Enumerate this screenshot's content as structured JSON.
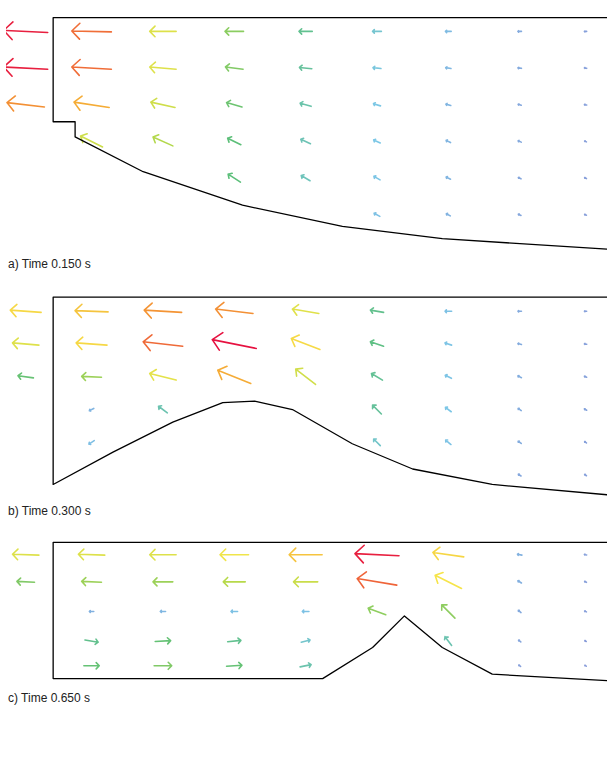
{
  "chart_data": [
    {
      "type": "vector",
      "title": "a) Time 0.150 s",
      "xlim": [
        -0.85,
        10.1
      ],
      "ylim": [
        -5.1,
        0.2
      ],
      "tick_labels": false,
      "speed_range": [
        0,
        1
      ],
      "boundary": [
        [
          10.09,
          0
        ],
        [
          0,
          0
        ],
        [
          0,
          -2.27
        ],
        [
          0.4,
          -2.27
        ],
        [
          0.4,
          -2.6
        ],
        [
          1.64,
          -3.36
        ],
        [
          3.45,
          -4.09
        ],
        [
          5.27,
          -4.55
        ],
        [
          7.09,
          -4.82
        ],
        [
          10.09,
          -5.05
        ]
      ],
      "vectors": [
        [
          -0.5,
          -0.3,
          -1.0,
          0.05
        ],
        [
          -0.5,
          -1.1,
          -1.0,
          0.05
        ],
        [
          -0.5,
          -1.9,
          -0.85,
          0.1
        ],
        [
          0.7,
          -0.3,
          -0.9,
          0.02
        ],
        [
          0.7,
          -1.1,
          -0.9,
          0.05
        ],
        [
          0.7,
          -1.9,
          -0.8,
          0.12
        ],
        [
          0.7,
          -2.7,
          -0.5,
          0.25
        ],
        [
          2,
          -0.3,
          -0.6,
          0
        ],
        [
          2,
          -1.1,
          -0.6,
          0.05
        ],
        [
          2,
          -1.9,
          -0.55,
          0.12
        ],
        [
          2,
          -2.7,
          -0.45,
          0.2
        ],
        [
          3.3,
          -0.3,
          -0.42,
          0
        ],
        [
          3.3,
          -1.1,
          -0.4,
          0.05
        ],
        [
          3.3,
          -1.9,
          -0.35,
          0.1
        ],
        [
          3.3,
          -2.7,
          -0.3,
          0.15
        ],
        [
          3.3,
          -3.5,
          -0.28,
          0.18
        ],
        [
          4.6,
          -0.3,
          -0.3,
          0
        ],
        [
          4.6,
          -1.1,
          -0.28,
          0.03
        ],
        [
          4.6,
          -1.9,
          -0.25,
          0.07
        ],
        [
          4.6,
          -2.7,
          -0.22,
          0.1
        ],
        [
          4.6,
          -3.5,
          -0.2,
          0.12
        ],
        [
          5.9,
          -0.3,
          -0.2,
          0
        ],
        [
          5.9,
          -1.1,
          -0.18,
          0.02
        ],
        [
          5.9,
          -1.9,
          -0.16,
          0.05
        ],
        [
          5.9,
          -2.7,
          -0.15,
          0.07
        ],
        [
          5.9,
          -3.5,
          -0.14,
          0.08
        ],
        [
          5.9,
          -4.3,
          -0.13,
          0.07
        ],
        [
          7.2,
          -0.3,
          -0.13,
          0
        ],
        [
          7.2,
          -1.1,
          -0.12,
          0.02
        ],
        [
          7.2,
          -1.9,
          -0.11,
          0.03
        ],
        [
          7.2,
          -2.7,
          -0.1,
          0.05
        ],
        [
          7.2,
          -3.5,
          -0.1,
          0.05
        ],
        [
          7.2,
          -4.3,
          -0.09,
          0.05
        ],
        [
          8.5,
          -0.3,
          -0.08,
          0
        ],
        [
          8.5,
          -1.1,
          -0.08,
          0.01
        ],
        [
          8.5,
          -1.9,
          -0.07,
          0.02
        ],
        [
          8.5,
          -2.7,
          -0.07,
          0.03
        ],
        [
          8.5,
          -3.5,
          -0.06,
          0.03
        ],
        [
          8.5,
          -4.3,
          -0.06,
          0.03
        ],
        [
          9.7,
          -0.3,
          -0.05,
          0
        ],
        [
          9.7,
          -1.1,
          -0.05,
          0.01
        ],
        [
          9.7,
          -1.9,
          -0.05,
          0.01
        ],
        [
          9.7,
          -2.7,
          -0.04,
          0.02
        ],
        [
          9.7,
          -3.5,
          -0.04,
          0.02
        ],
        [
          9.7,
          -4.3,
          -0.04,
          0.02
        ]
      ]
    },
    {
      "type": "vector",
      "title": "b) Time 0.300 s",
      "xlim": [
        -0.85,
        10.1
      ],
      "ylim": [
        -4.3,
        0.25
      ],
      "tick_labels": false,
      "speed_range": [
        0,
        1
      ],
      "boundary": [
        [
          10.09,
          0
        ],
        [
          0,
          0
        ],
        [
          0,
          -4.0
        ],
        [
          1.09,
          -3.31
        ],
        [
          2.18,
          -2.67
        ],
        [
          3.09,
          -2.25
        ],
        [
          3.67,
          -2.22
        ],
        [
          4.36,
          -2.4
        ],
        [
          5.45,
          -3.13
        ],
        [
          6.55,
          -3.67
        ],
        [
          8,
          -4.0
        ],
        [
          10.09,
          -4.22
        ]
      ],
      "vectors": [
        [
          -0.5,
          -0.3,
          -0.7,
          0.05
        ],
        [
          -0.5,
          -1.0,
          -0.6,
          0.05
        ],
        [
          -0.5,
          -1.7,
          -0.35,
          0.05
        ],
        [
          0.7,
          -0.3,
          -0.75,
          0.03
        ],
        [
          0.7,
          -1.0,
          -0.7,
          0.05
        ],
        [
          0.7,
          -1.7,
          -0.45,
          0.02
        ],
        [
          0.7,
          -2.4,
          -0.1,
          -0.05
        ],
        [
          0.7,
          -3.1,
          -0.12,
          -0.08
        ],
        [
          2,
          -0.3,
          -0.85,
          0.05
        ],
        [
          2,
          -1.0,
          -0.9,
          0.1
        ],
        [
          2,
          -1.7,
          -0.6,
          0.15
        ],
        [
          2,
          -2.4,
          -0.2,
          0.15
        ],
        [
          3.3,
          -0.3,
          -0.85,
          0.1
        ],
        [
          3.3,
          -1.0,
          -1.0,
          0.2
        ],
        [
          3.3,
          -1.7,
          -0.75,
          0.3
        ],
        [
          4.6,
          -0.3,
          -0.6,
          0.1
        ],
        [
          4.6,
          -1.0,
          -0.65,
          0.25
        ],
        [
          4.6,
          -1.7,
          -0.45,
          0.35
        ],
        [
          5.9,
          -0.3,
          -0.3,
          0.05
        ],
        [
          5.9,
          -1.0,
          -0.3,
          0.1
        ],
        [
          5.9,
          -1.7,
          -0.25,
          0.15
        ],
        [
          5.9,
          -2.4,
          -0.2,
          0.2
        ],
        [
          5.9,
          -3.1,
          -0.15,
          0.15
        ],
        [
          7.2,
          -0.3,
          -0.15,
          0
        ],
        [
          7.2,
          -1.0,
          -0.15,
          0.05
        ],
        [
          7.2,
          -1.7,
          -0.14,
          0.07
        ],
        [
          7.2,
          -2.4,
          -0.13,
          0.1
        ],
        [
          7.2,
          -3.1,
          -0.12,
          0.1
        ],
        [
          8.5,
          -0.3,
          -0.08,
          0
        ],
        [
          8.5,
          -1.0,
          -0.08,
          0.02
        ],
        [
          8.5,
          -1.7,
          -0.08,
          0.04
        ],
        [
          8.5,
          -2.4,
          -0.07,
          0.05
        ],
        [
          8.5,
          -3.1,
          -0.07,
          0.05
        ],
        [
          8.5,
          -3.8,
          -0.06,
          0.04
        ],
        [
          9.7,
          -0.3,
          -0.05,
          0
        ],
        [
          9.7,
          -1.0,
          -0.05,
          0.01
        ],
        [
          9.7,
          -1.7,
          -0.05,
          0.02
        ],
        [
          9.7,
          -2.4,
          -0.05,
          0.03
        ],
        [
          9.7,
          -3.1,
          -0.04,
          0.03
        ],
        [
          9.7,
          -3.8,
          -0.04,
          0.03
        ]
      ]
    },
    {
      "type": "vector",
      "title": "c) Time 0.650 s",
      "xlim": [
        -0.85,
        10.1
      ],
      "ylim": [
        -2.9,
        0.2
      ],
      "tick_labels": false,
      "speed_range": [
        0,
        1
      ],
      "boundary": [
        [
          10.09,
          0
        ],
        [
          0,
          0
        ],
        [
          0,
          -2.76
        ],
        [
          4.91,
          -2.76
        ],
        [
          5.82,
          -2.13
        ],
        [
          6.4,
          -1.49
        ],
        [
          7.09,
          -2.13
        ],
        [
          8,
          -2.67
        ],
        [
          10.09,
          -2.8
        ]
      ],
      "vectors": [
        [
          -0.5,
          -0.25,
          -0.6,
          0.02
        ],
        [
          -0.5,
          -0.8,
          -0.4,
          0.02
        ],
        [
          0.7,
          -0.25,
          -0.6,
          0.02
        ],
        [
          0.7,
          -0.8,
          -0.45,
          0.02
        ],
        [
          0.7,
          -1.4,
          -0.1,
          0
        ],
        [
          0.7,
          -2.0,
          0.3,
          -0.05
        ],
        [
          0.7,
          -2.5,
          0.35,
          0
        ],
        [
          2,
          -0.25,
          -0.6,
          0
        ],
        [
          2,
          -0.8,
          -0.45,
          0
        ],
        [
          2,
          -1.4,
          -0.12,
          0
        ],
        [
          2,
          -2.0,
          0.35,
          0.02
        ],
        [
          2,
          -2.5,
          0.4,
          0
        ],
        [
          3.3,
          -0.25,
          -0.65,
          0
        ],
        [
          3.3,
          -0.8,
          -0.5,
          0
        ],
        [
          3.3,
          -1.4,
          -0.15,
          0
        ],
        [
          3.3,
          -2.0,
          0.3,
          0.03
        ],
        [
          3.3,
          -2.5,
          0.35,
          0.02
        ],
        [
          4.6,
          -0.25,
          -0.75,
          0
        ],
        [
          4.6,
          -0.8,
          -0.55,
          0
        ],
        [
          4.6,
          -1.4,
          -0.15,
          0
        ],
        [
          4.6,
          -2.0,
          0.2,
          0.05
        ],
        [
          4.6,
          -2.5,
          0.25,
          0.05
        ],
        [
          5.9,
          -0.25,
          -1.0,
          0.05
        ],
        [
          5.9,
          -0.8,
          -0.9,
          0.15
        ],
        [
          5.9,
          -1.4,
          -0.4,
          0.15
        ],
        [
          7.2,
          -0.25,
          -0.7,
          0.1
        ],
        [
          7.2,
          -0.8,
          -0.6,
          0.3
        ],
        [
          7.2,
          -1.4,
          -0.3,
          0.3
        ],
        [
          7.2,
          -2.0,
          -0.15,
          0.2
        ],
        [
          8.5,
          -0.25,
          -0.1,
          0.02
        ],
        [
          8.5,
          -0.8,
          -0.08,
          0.05
        ],
        [
          8.5,
          -1.4,
          -0.06,
          0.05
        ],
        [
          8.5,
          -2.0,
          -0.05,
          0.04
        ],
        [
          8.5,
          -2.5,
          -0.04,
          0.03
        ],
        [
          9.7,
          -0.25,
          -0.05,
          0.01
        ],
        [
          9.7,
          -0.8,
          -0.04,
          0.02
        ],
        [
          9.7,
          -1.4,
          -0.04,
          0.02
        ],
        [
          9.7,
          -2.0,
          -0.03,
          0.02
        ],
        [
          9.7,
          -2.5,
          -0.03,
          0.02
        ]
      ]
    }
  ]
}
